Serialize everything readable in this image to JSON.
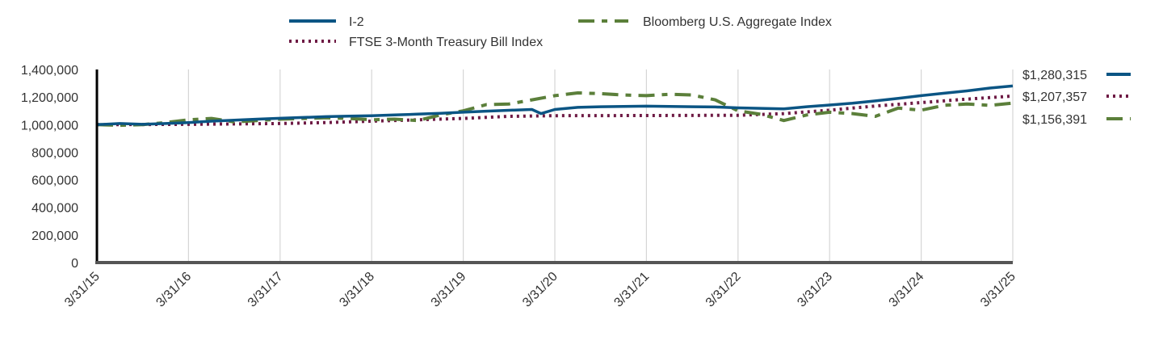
{
  "chart_data": {
    "type": "line",
    "title": "",
    "xlabel": "",
    "ylabel": "",
    "ylim": [
      0,
      1400000
    ],
    "yticks": [
      "1,400,000",
      "1,200,000",
      "1,000,000",
      "800,000",
      "600,000",
      "400,000",
      "200,000",
      "0"
    ],
    "ytick_values": [
      1400000,
      1200000,
      1000000,
      800000,
      600000,
      400000,
      200000,
      0
    ],
    "xticks": [
      "3/31/15",
      "3/31/16",
      "3/31/17",
      "3/31/18",
      "3/31/19",
      "3/31/20",
      "3/31/21",
      "3/31/22",
      "3/31/23",
      "3/31/24",
      "3/31/25"
    ],
    "xlim": [
      2015.25,
      2025.25
    ],
    "grid": true,
    "legend_position": "top",
    "series": [
      {
        "name": "I-2",
        "color": "#0b5584",
        "style": "solid",
        "end_label": "$1,280,315",
        "x": [
          2015.25,
          2015.5,
          2015.75,
          2016.0,
          2016.25,
          2016.5,
          2016.75,
          2017.0,
          2017.25,
          2017.5,
          2017.75,
          2018.0,
          2018.25,
          2018.5,
          2018.75,
          2019.0,
          2019.25,
          2019.5,
          2019.75,
          2020.0,
          2020.1,
          2020.25,
          2020.5,
          2020.75,
          2021.0,
          2021.25,
          2021.5,
          2021.75,
          2022.0,
          2022.25,
          2022.5,
          2022.75,
          2023.0,
          2023.25,
          2023.5,
          2023.75,
          2024.0,
          2024.25,
          2024.5,
          2024.75,
          2025.0,
          2025.25
        ],
        "values": [
          1000000,
          1008000,
          1002000,
          1008000,
          1015000,
          1025000,
          1032000,
          1040000,
          1046000,
          1052000,
          1058000,
          1062000,
          1065000,
          1070000,
          1076000,
          1082000,
          1090000,
          1098000,
          1104000,
          1110000,
          1080000,
          1110000,
          1125000,
          1130000,
          1132000,
          1134000,
          1132000,
          1130000,
          1128000,
          1122000,
          1118000,
          1115000,
          1130000,
          1142000,
          1155000,
          1172000,
          1190000,
          1210000,
          1228000,
          1245000,
          1265000,
          1280315
        ]
      },
      {
        "name": "Bloomberg U.S. Aggregate Index",
        "color": "#5b7f3a",
        "style": "dashed",
        "end_label": "$1,156,391",
        "x": [
          2015.25,
          2015.5,
          2015.75,
          2016.0,
          2016.25,
          2016.5,
          2016.75,
          2017.0,
          2017.25,
          2017.5,
          2017.75,
          2018.0,
          2018.25,
          2018.5,
          2018.75,
          2019.0,
          2019.25,
          2019.5,
          2019.75,
          2020.0,
          2020.25,
          2020.5,
          2020.75,
          2021.0,
          2021.25,
          2021.5,
          2021.75,
          2022.0,
          2022.25,
          2022.5,
          2022.75,
          2023.0,
          2023.25,
          2023.5,
          2023.75,
          2024.0,
          2024.25,
          2024.5,
          2024.75,
          2025.0,
          2025.25
        ],
        "values": [
          1000000,
          995000,
          1000000,
          1015000,
          1035000,
          1045000,
          1020000,
          1030000,
          1040000,
          1045000,
          1050000,
          1045000,
          1035000,
          1040000,
          1030000,
          1070000,
          1100000,
          1145000,
          1150000,
          1180000,
          1210000,
          1230000,
          1225000,
          1215000,
          1210000,
          1220000,
          1215000,
          1180000,
          1100000,
          1075000,
          1030000,
          1070000,
          1090000,
          1080000,
          1060000,
          1120000,
          1105000,
          1140000,
          1150000,
          1140000,
          1156391
        ]
      },
      {
        "name": "FTSE 3-Month Treasury Bill Index",
        "color": "#6e1a44",
        "style": "dotted",
        "end_label": "$1,207,357",
        "x": [
          2015.25,
          2016.25,
          2017.25,
          2017.75,
          2018.25,
          2018.75,
          2019.25,
          2019.75,
          2020.25,
          2021.25,
          2022.25,
          2022.75,
          2023.25,
          2023.75,
          2024.25,
          2024.75,
          2025.25
        ],
        "values": [
          1000000,
          1002000,
          1008000,
          1015000,
          1025000,
          1035000,
          1045000,
          1060000,
          1065000,
          1066000,
          1068000,
          1080000,
          1105000,
          1135000,
          1160000,
          1185000,
          1207357
        ]
      }
    ]
  }
}
